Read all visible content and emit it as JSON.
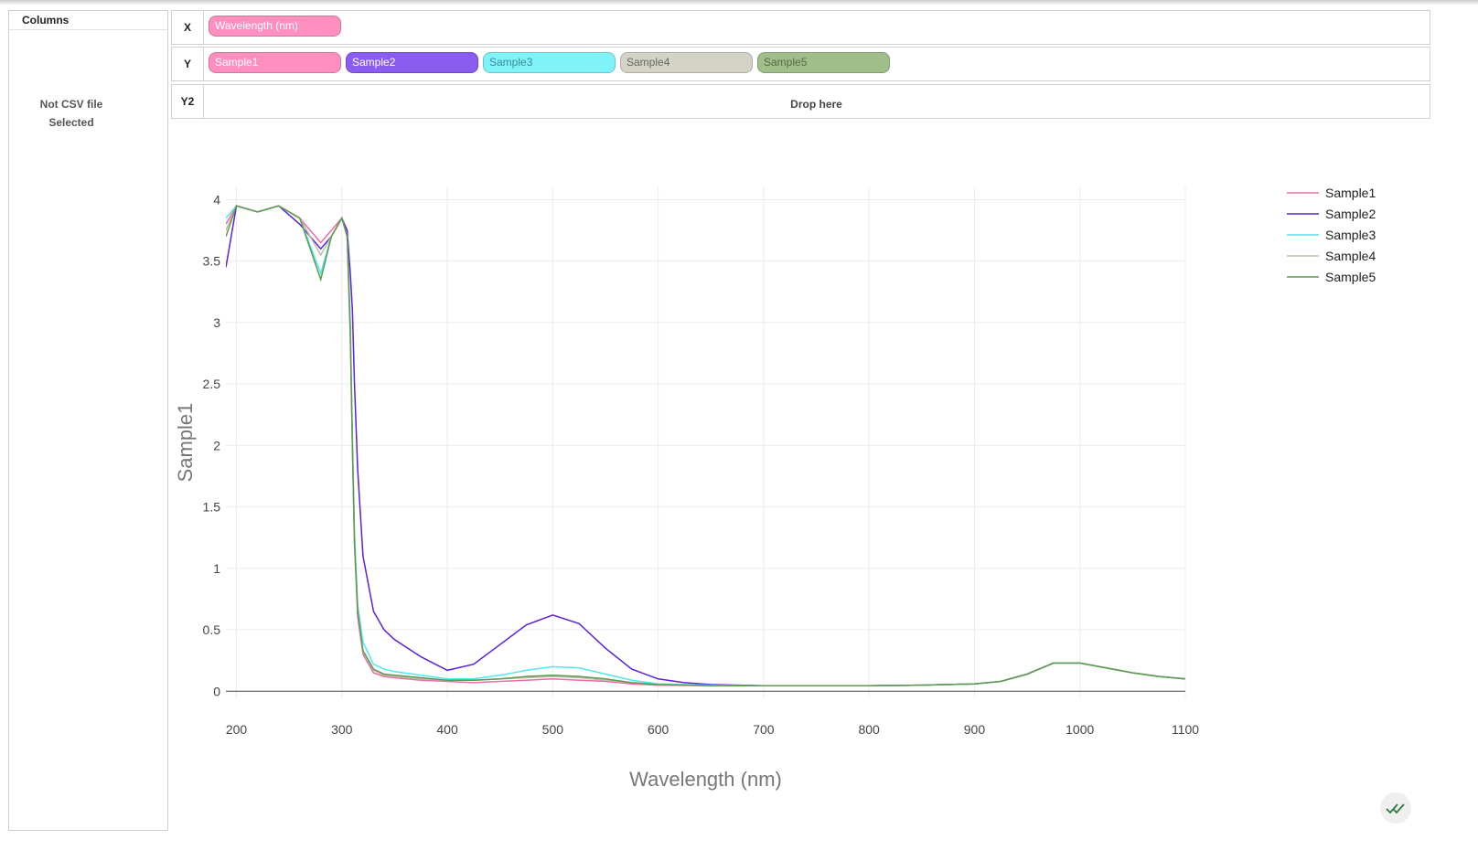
{
  "sidebar": {
    "header": "Columns",
    "message": "Not CSV file\nSelected"
  },
  "axes_panel": {
    "x": {
      "label": "X",
      "pills": [
        {
          "label": "Wavelength (nm)",
          "color": "#ff8fbf",
          "text_color": "#ffffff"
        }
      ]
    },
    "y": {
      "label": "Y",
      "pills": [
        {
          "label": "Sample1",
          "color": "#ff8fbf",
          "text_color": "#ffffff"
        },
        {
          "label": "Sample2",
          "color": "#8b5cf0",
          "text_color": "#ffffff"
        },
        {
          "label": "Sample3",
          "color": "#7ff3f8",
          "text_color": "#3b8a9a"
        },
        {
          "label": "Sample4",
          "color": "#d3d3c6",
          "text_color": "#666666"
        },
        {
          "label": "Sample5",
          "color": "#a0be8a",
          "text_color": "#556b44"
        }
      ]
    },
    "y2": {
      "label": "Y2",
      "placeholder": "Drop here"
    }
  },
  "chart_data": {
    "type": "line",
    "xlabel": "Wavelength (nm)",
    "ylabel": "Sample1",
    "xlim": [
      190,
      1100
    ],
    "ylim": [
      -0.05,
      4.1
    ],
    "xticks": [
      200,
      300,
      400,
      500,
      600,
      700,
      800,
      900,
      1000,
      1100
    ],
    "yticks": [
      0,
      0.5,
      1,
      1.5,
      2,
      2.5,
      3,
      3.5,
      4
    ],
    "ytick_labels": [
      "0",
      "0.5",
      "1",
      "1.5",
      "2",
      "2.5",
      "3",
      "3.5",
      "4"
    ],
    "grid": true,
    "legend_position": "top-right",
    "series": [
      {
        "name": "Sample1",
        "color": "#f06aa6",
        "x": [
          190,
          200,
          220,
          240,
          260,
          280,
          290,
          300,
          305,
          308,
          310,
          312,
          315,
          320,
          330,
          340,
          350,
          375,
          400,
          425,
          450,
          475,
          500,
          525,
          550,
          575,
          600,
          650,
          700,
          750,
          800,
          850,
          900,
          925,
          950,
          975,
          1000,
          1025,
          1050,
          1075,
          1100
        ],
        "y": [
          3.8,
          3.95,
          3.9,
          3.95,
          3.85,
          3.65,
          3.75,
          3.85,
          3.7,
          3.0,
          2.0,
          1.2,
          0.6,
          0.3,
          0.15,
          0.12,
          0.11,
          0.09,
          0.08,
          0.07,
          0.08,
          0.09,
          0.1,
          0.09,
          0.08,
          0.06,
          0.05,
          0.045,
          0.045,
          0.045,
          0.045,
          0.05,
          0.06,
          0.08,
          0.14,
          0.23,
          0.23,
          0.19,
          0.15,
          0.12,
          0.1
        ]
      },
      {
        "name": "Sample2",
        "color": "#5b21d6",
        "x": [
          190,
          200,
          220,
          240,
          260,
          280,
          290,
          300,
          305,
          308,
          310,
          312,
          315,
          320,
          330,
          340,
          350,
          375,
          400,
          425,
          450,
          475,
          500,
          525,
          550,
          575,
          600,
          625,
          650,
          700,
          750,
          800,
          850,
          900,
          925,
          950,
          975,
          1000,
          1025,
          1050,
          1075,
          1100
        ],
        "y": [
          3.45,
          3.95,
          3.9,
          3.95,
          3.8,
          3.6,
          3.7,
          3.85,
          3.75,
          3.4,
          3.1,
          2.5,
          1.8,
          1.1,
          0.65,
          0.5,
          0.42,
          0.28,
          0.17,
          0.22,
          0.38,
          0.54,
          0.62,
          0.55,
          0.35,
          0.18,
          0.1,
          0.07,
          0.055,
          0.045,
          0.045,
          0.045,
          0.05,
          0.06,
          0.08,
          0.14,
          0.23,
          0.23,
          0.19,
          0.15,
          0.12,
          0.1
        ]
      },
      {
        "name": "Sample3",
        "color": "#4ee8ee",
        "x": [
          190,
          200,
          220,
          240,
          260,
          280,
          290,
          300,
          305,
          308,
          310,
          312,
          315,
          320,
          330,
          340,
          350,
          375,
          400,
          425,
          450,
          475,
          500,
          525,
          550,
          575,
          600,
          650,
          700,
          750,
          800,
          850,
          900,
          925,
          950,
          975,
          1000,
          1025,
          1050,
          1075,
          1100
        ],
        "y": [
          3.85,
          3.95,
          3.9,
          3.95,
          3.85,
          3.4,
          3.7,
          3.85,
          3.7,
          3.0,
          2.1,
          1.3,
          0.7,
          0.4,
          0.22,
          0.18,
          0.16,
          0.13,
          0.1,
          0.1,
          0.13,
          0.17,
          0.2,
          0.19,
          0.14,
          0.09,
          0.06,
          0.05,
          0.045,
          0.045,
          0.045,
          0.05,
          0.06,
          0.08,
          0.14,
          0.23,
          0.23,
          0.19,
          0.15,
          0.12,
          0.1
        ]
      },
      {
        "name": "Sample4",
        "color": "#bdbdab",
        "x": [
          190,
          200,
          220,
          240,
          260,
          280,
          290,
          300,
          305,
          308,
          310,
          312,
          315,
          320,
          330,
          340,
          350,
          375,
          400,
          425,
          450,
          475,
          500,
          525,
          550,
          575,
          600,
          650,
          700,
          750,
          800,
          850,
          900,
          925,
          950,
          975,
          1000,
          1025,
          1050,
          1075,
          1100
        ],
        "y": [
          3.75,
          3.95,
          3.9,
          3.95,
          3.85,
          3.55,
          3.7,
          3.85,
          3.7,
          2.9,
          2.0,
          1.2,
          0.65,
          0.32,
          0.17,
          0.13,
          0.12,
          0.1,
          0.09,
          0.09,
          0.1,
          0.11,
          0.12,
          0.11,
          0.09,
          0.07,
          0.055,
          0.045,
          0.045,
          0.045,
          0.045,
          0.05,
          0.06,
          0.08,
          0.14,
          0.23,
          0.23,
          0.19,
          0.15,
          0.12,
          0.1
        ]
      },
      {
        "name": "Sample5",
        "color": "#5f9a4e",
        "x": [
          190,
          200,
          220,
          240,
          260,
          280,
          290,
          300,
          305,
          308,
          310,
          312,
          315,
          320,
          330,
          340,
          350,
          375,
          400,
          425,
          450,
          475,
          500,
          525,
          550,
          575,
          600,
          650,
          700,
          750,
          800,
          850,
          900,
          925,
          950,
          975,
          1000,
          1025,
          1050,
          1075,
          1100
        ],
        "y": [
          3.7,
          3.95,
          3.9,
          3.95,
          3.85,
          3.35,
          3.7,
          3.85,
          3.7,
          2.9,
          2.0,
          1.2,
          0.65,
          0.33,
          0.18,
          0.14,
          0.13,
          0.11,
          0.09,
          0.09,
          0.1,
          0.12,
          0.13,
          0.12,
          0.1,
          0.07,
          0.055,
          0.045,
          0.045,
          0.045,
          0.045,
          0.05,
          0.06,
          0.08,
          0.14,
          0.23,
          0.23,
          0.19,
          0.15,
          0.12,
          0.1
        ]
      }
    ]
  },
  "status_icon": "double-check-icon"
}
